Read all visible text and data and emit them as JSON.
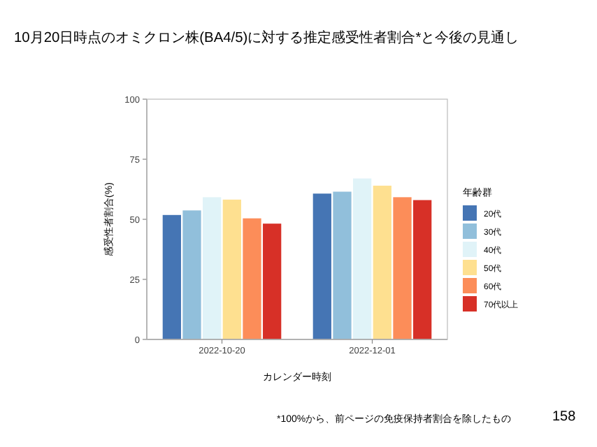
{
  "chart_data": {
    "type": "bar",
    "title": "10月20日時点のオミクロン株(BA4/5)に対する推定感受性者割合*と今後の見通し",
    "xlabel": "カレンダー時刻",
    "ylabel": "感受性者割合(%)",
    "legend_title": "年齢群",
    "categories": [
      "2022-10-20",
      "2022-12-01"
    ],
    "series": [
      {
        "name": "20代",
        "color": "#4575b4",
        "values": [
          51.8,
          60.7
        ]
      },
      {
        "name": "30代",
        "color": "#91bfdb",
        "values": [
          53.7,
          61.5
        ]
      },
      {
        "name": "40代",
        "color": "#e0f3f8",
        "values": [
          59.2,
          67
        ]
      },
      {
        "name": "50代",
        "color": "#fee090",
        "values": [
          58.2,
          64
        ]
      },
      {
        "name": "60代",
        "color": "#fc8d59",
        "values": [
          50.4,
          59.2
        ]
      },
      {
        "name": "70代以上",
        "color": "#d73027",
        "values": [
          48.2,
          58
        ]
      }
    ],
    "ylim": [
      0,
      100
    ],
    "yticks": [
      0,
      25,
      50,
      75,
      100
    ],
    "grid": false,
    "legend": "right",
    "annotations": [
      "*100%から、前ページの免疫保持者割合を除したもの",
      "158"
    ]
  }
}
